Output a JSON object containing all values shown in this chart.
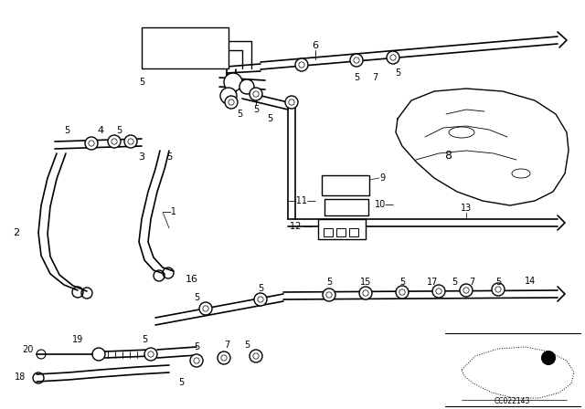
{
  "bg_color": "#ffffff",
  "line_color": "#000000",
  "figsize": [
    6.4,
    4.48
  ],
  "dpi": 100,
  "diagram_code": "CC022143"
}
